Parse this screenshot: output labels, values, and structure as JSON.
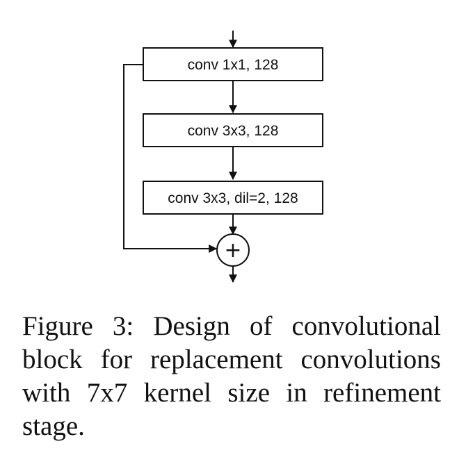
{
  "diagram": {
    "blocks": [
      {
        "id": "block1",
        "label": "conv 1x1, 128"
      },
      {
        "id": "block2",
        "label": "conv 3x3, 128"
      },
      {
        "id": "block3",
        "label": "conv 3x3, dil=2, 128"
      }
    ],
    "adder_symbol": "+"
  },
  "caption": {
    "text": "Figure 3: Design of convolutional block for replacement convolutions with 7x7 kernel size in refinement stage."
  }
}
